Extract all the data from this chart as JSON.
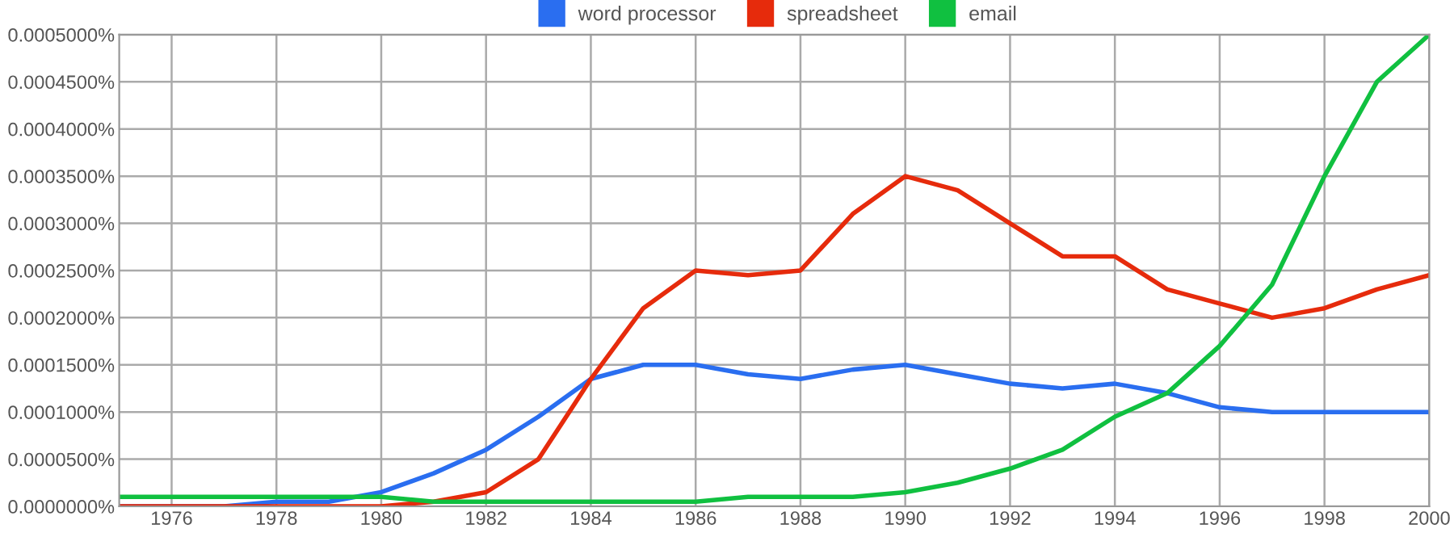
{
  "chart_data": {
    "type": "line",
    "x": [
      1975,
      1976,
      1977,
      1978,
      1979,
      1980,
      1981,
      1982,
      1983,
      1984,
      1985,
      1986,
      1987,
      1988,
      1989,
      1990,
      1991,
      1992,
      1993,
      1994,
      1995,
      1996,
      1997,
      1998,
      1999,
      2000
    ],
    "series": [
      {
        "name": "word processor",
        "color": "#2a6ef0",
        "values": [
          0,
          0,
          0,
          5e-06,
          5e-06,
          1.5e-05,
          3.5e-05,
          6e-05,
          9.5e-05,
          0.000135,
          0.00015,
          0.00015,
          0.00014,
          0.000135,
          0.000145,
          0.00015,
          0.00014,
          0.00013,
          0.000125,
          0.00013,
          0.00012,
          0.000105,
          0.0001,
          0.0001,
          0.0001,
          0.0001
        ]
      },
      {
        "name": "spreadsheet",
        "color": "#e62b0c",
        "values": [
          0,
          0,
          0,
          0,
          0,
          0,
          5e-06,
          1.5e-05,
          5e-05,
          0.000135,
          0.00021,
          0.00025,
          0.000245,
          0.00025,
          0.00031,
          0.00035,
          0.000335,
          0.0003,
          0.000265,
          0.000265,
          0.00023,
          0.000215,
          0.0002,
          0.00021,
          0.00023,
          0.000245
        ]
      },
      {
        "name": "email",
        "color": "#10c040",
        "values": [
          1e-05,
          1e-05,
          1e-05,
          1e-05,
          1e-05,
          1e-05,
          5e-06,
          5e-06,
          5e-06,
          5e-06,
          5e-06,
          5e-06,
          1e-05,
          1e-05,
          1e-05,
          1.5e-05,
          2.5e-05,
          4e-05,
          6e-05,
          9.5e-05,
          0.00012,
          0.00017,
          0.000235,
          0.00035,
          0.00045,
          0.0005
        ]
      }
    ],
    "xlim": [
      1975,
      2000
    ],
    "xticks": [
      1976,
      1978,
      1980,
      1982,
      1984,
      1986,
      1988,
      1990,
      1992,
      1994,
      1996,
      1998,
      2000
    ],
    "ylim": [
      0,
      0.0005
    ],
    "yticks": [
      {
        "value": 0,
        "label": "0.0000000%"
      },
      {
        "value": 5e-05,
        "label": "0.0000500%"
      },
      {
        "value": 0.0001,
        "label": "0.0001000%"
      },
      {
        "value": 0.00015,
        "label": "0.0001500%"
      },
      {
        "value": 0.0002,
        "label": "0.0002000%"
      },
      {
        "value": 0.00025,
        "label": "0.0002500%"
      },
      {
        "value": 0.0003,
        "label": "0.0003000%"
      },
      {
        "value": 0.00035,
        "label": "0.0003500%"
      },
      {
        "value": 0.0004,
        "label": "0.0004000%"
      },
      {
        "value": 0.00045,
        "label": "0.0004500%"
      },
      {
        "value": 0.0005,
        "label": "0.0005000%"
      }
    ],
    "grid": true,
    "legend": "top",
    "marker": "none",
    "line_style": "solid"
  }
}
